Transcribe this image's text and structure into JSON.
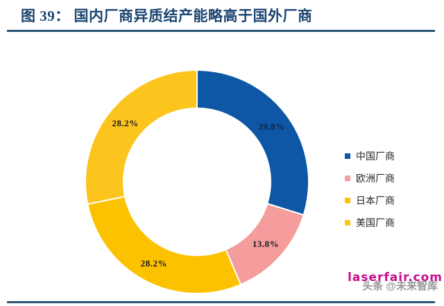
{
  "title": "图 39：  国内厂商异质结产能略高于国外厂商",
  "chart_data": {
    "type": "pie",
    "subtype": "donut",
    "title": "图 39：国内厂商异质结产能略高于国外厂商",
    "categories": [
      "中国厂商",
      "欧洲厂商",
      "日本厂商",
      "美国厂商"
    ],
    "values": [
      29.8,
      13.8,
      28.2,
      28.2
    ],
    "labels": [
      "29.8%",
      "13.8%",
      "28.2%",
      "28.2%"
    ],
    "colors": [
      "#0d57a6",
      "#f59c9c",
      "#fcc200",
      "#fcc51e"
    ],
    "label_colors": [
      "#10233f",
      "#1a1a1a",
      "#1a1a1a",
      "#1a1a1a"
    ],
    "start_angle_deg": 0,
    "direction": "clockwise",
    "inner_radius_ratio": 0.66,
    "legend_position": "right"
  },
  "legend": {
    "items": [
      {
        "label": "中国厂商",
        "color": "#0d57a6"
      },
      {
        "label": "欧洲厂商",
        "color": "#f59c9c"
      },
      {
        "label": "日本厂商",
        "color": "#fcc200"
      },
      {
        "label": "美国厂商",
        "color": "#fcc51e"
      }
    ]
  },
  "watermarks": {
    "site": "laserfair.com",
    "byline": "头条 @未来智库"
  },
  "colors": {
    "title_text": "#1b4470",
    "rule": "#2a5574",
    "site_watermark": "#c60d8e",
    "byline_watermark": "#969696",
    "background": "#ffffff"
  }
}
